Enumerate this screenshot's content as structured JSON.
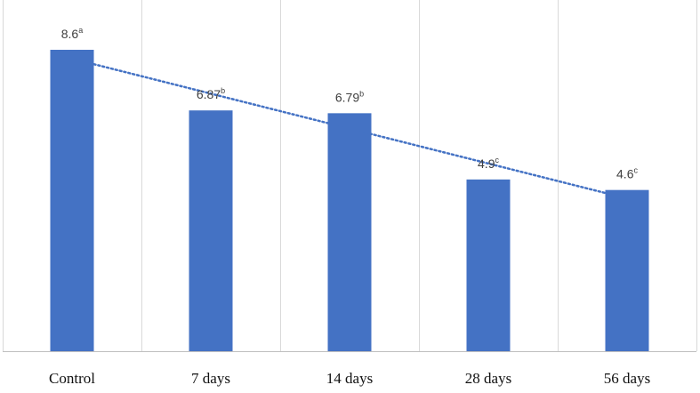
{
  "chart_data": {
    "type": "bar",
    "title": "",
    "xlabel": "",
    "ylabel": "",
    "categories": [
      "Control",
      "7 days",
      "14 days",
      "28 days",
      "56 days"
    ],
    "values": [
      8.6,
      6.87,
      6.79,
      4.9,
      4.6
    ],
    "data_labels": [
      {
        "value": "8.6",
        "superscript": "a"
      },
      {
        "value": "6.87",
        "superscript": "b"
      },
      {
        "value": "6.79",
        "superscript": "b"
      },
      {
        "value": "4.9",
        "superscript": "c"
      },
      {
        "value": "4.6",
        "superscript": "c"
      }
    ],
    "ylim": [
      0,
      8.6
    ],
    "grid": {
      "vertical_category_separators": true,
      "horizontal": false
    },
    "trendline": {
      "type": "linear",
      "style": "dotted"
    },
    "colors": {
      "bar": "#4472C4",
      "trendline": "#4472C4",
      "gridline": "#D9D9D9",
      "baseline": "#BFBFBF"
    }
  }
}
